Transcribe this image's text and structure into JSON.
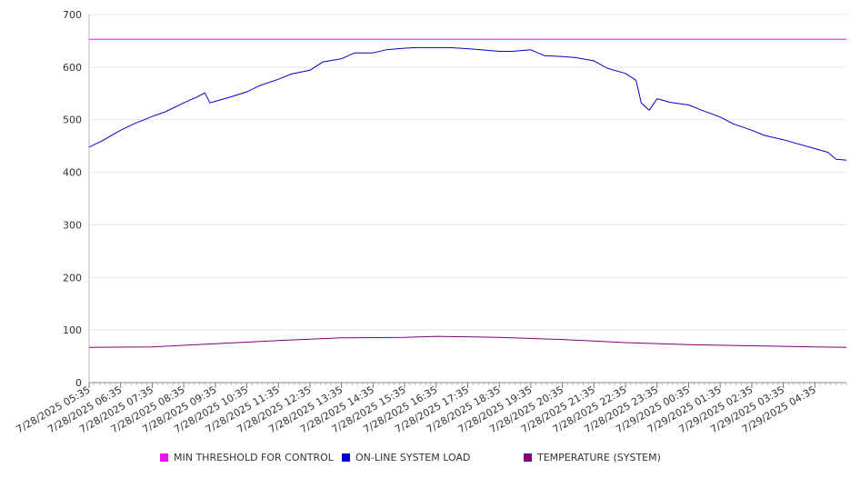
{
  "chart_data": {
    "type": "line",
    "title": "",
    "xlabel": "",
    "ylabel": "",
    "ylim": [
      0,
      700
    ],
    "yticks": [
      0,
      100,
      200,
      300,
      400,
      500,
      600,
      700
    ],
    "grid": true,
    "legend_position": "bottom",
    "x_tick_labels": [
      "7/28/2025 05:35",
      "7/28/2025 06:35",
      "7/28/2025 07:35",
      "7/28/2025 08:35",
      "7/28/2025 09:35",
      "7/28/2025 10:35",
      "7/28/2025 11:35",
      "7/28/2025 12:35",
      "7/28/2025 13:35",
      "7/28/2025 14:35",
      "7/28/2025 15:35",
      "7/28/2025 16:35",
      "7/28/2025 17:35",
      "7/28/2025 18:35",
      "7/28/2025 19:35",
      "7/28/2025 20:35",
      "7/28/2025 21:35",
      "7/28/2025 22:35",
      "7/28/2025 23:35",
      "7/29/2025 00:35",
      "7/29/2025 01:35",
      "7/29/2025 02:35",
      "7/29/2025 03:35",
      "7/29/2025 04:35"
    ],
    "x_range": [
      "7/28/2025 05:35",
      "7/29/2025 05:35"
    ],
    "series": [
      {
        "name": "MIN THRESHOLD FOR CONTROL",
        "color": "#ee11ee",
        "points": [
          [
            "7/28/2025 05:35",
            653
          ],
          [
            "7/29/2025 05:35",
            653
          ]
        ]
      },
      {
        "name": "ON-LINE SYSTEM LOAD",
        "color": "#0000cc",
        "points": [
          [
            "7/28/2025 05:35",
            448
          ],
          [
            "7/28/2025 06:00",
            460
          ],
          [
            "7/28/2025 06:35",
            480
          ],
          [
            "7/28/2025 07:00",
            492
          ],
          [
            "7/28/2025 07:35",
            506
          ],
          [
            "7/28/2025 08:00",
            515
          ],
          [
            "7/28/2025 08:35",
            532
          ],
          [
            "7/28/2025 09:00",
            543
          ],
          [
            "7/28/2025 09:15",
            551
          ],
          [
            "7/28/2025 09:25",
            532
          ],
          [
            "7/28/2025 09:35",
            535
          ],
          [
            "7/28/2025 10:00",
            542
          ],
          [
            "7/28/2025 10:35",
            553
          ],
          [
            "7/28/2025 11:00",
            565
          ],
          [
            "7/28/2025 11:35",
            577
          ],
          [
            "7/28/2025 12:00",
            587
          ],
          [
            "7/28/2025 12:35",
            594
          ],
          [
            "7/28/2025 13:00",
            610
          ],
          [
            "7/28/2025 13:35",
            616
          ],
          [
            "7/28/2025 14:00",
            627
          ],
          [
            "7/28/2025 14:35",
            627
          ],
          [
            "7/28/2025 15:00",
            633
          ],
          [
            "7/28/2025 15:35",
            636
          ],
          [
            "7/28/2025 16:00",
            637
          ],
          [
            "7/28/2025 16:35",
            637
          ],
          [
            "7/28/2025 17:00",
            637
          ],
          [
            "7/28/2025 17:35",
            635
          ],
          [
            "7/28/2025 18:00",
            633
          ],
          [
            "7/28/2025 18:35",
            630
          ],
          [
            "7/28/2025 19:00",
            630
          ],
          [
            "7/28/2025 19:35",
            633
          ],
          [
            "7/28/2025 20:00",
            622
          ],
          [
            "7/28/2025 20:35",
            620
          ],
          [
            "7/28/2025 21:00",
            618
          ],
          [
            "7/28/2025 21:35",
            612
          ],
          [
            "7/28/2025 22:00",
            598
          ],
          [
            "7/28/2025 22:35",
            588
          ],
          [
            "7/28/2025 22:55",
            575
          ],
          [
            "7/28/2025 23:05",
            532
          ],
          [
            "7/28/2025 23:20",
            518
          ],
          [
            "7/28/2025 23:35",
            540
          ],
          [
            "7/29/2025 00:00",
            533
          ],
          [
            "7/29/2025 00:35",
            528
          ],
          [
            "7/29/2025 01:00",
            518
          ],
          [
            "7/29/2025 01:35",
            505
          ],
          [
            "7/29/2025 02:00",
            492
          ],
          [
            "7/29/2025 02:35",
            480
          ],
          [
            "7/29/2025 03:00",
            470
          ],
          [
            "7/29/2025 03:35",
            462
          ],
          [
            "7/29/2025 04:00",
            455
          ],
          [
            "7/29/2025 04:35",
            445
          ],
          [
            "7/29/2025 05:00",
            438
          ],
          [
            "7/29/2025 05:15",
            425
          ],
          [
            "7/29/2025 05:35",
            423
          ]
        ]
      },
      {
        "name": "TEMPERATURE (SYSTEM)",
        "color": "#800080",
        "points": [
          [
            "7/28/2025 05:35",
            67
          ],
          [
            "7/28/2025 07:35",
            68
          ],
          [
            "7/28/2025 09:35",
            74
          ],
          [
            "7/28/2025 11:35",
            80
          ],
          [
            "7/28/2025 13:35",
            85
          ],
          [
            "7/28/2025 15:35",
            86
          ],
          [
            "7/28/2025 16:35",
            88
          ],
          [
            "7/28/2025 18:35",
            86
          ],
          [
            "7/28/2025 20:35",
            82
          ],
          [
            "7/28/2025 22:35",
            76
          ],
          [
            "7/29/2025 00:35",
            72
          ],
          [
            "7/29/2025 02:35",
            70
          ],
          [
            "7/29/2025 04:35",
            68
          ],
          [
            "7/29/2025 05:35",
            67
          ]
        ]
      }
    ]
  }
}
